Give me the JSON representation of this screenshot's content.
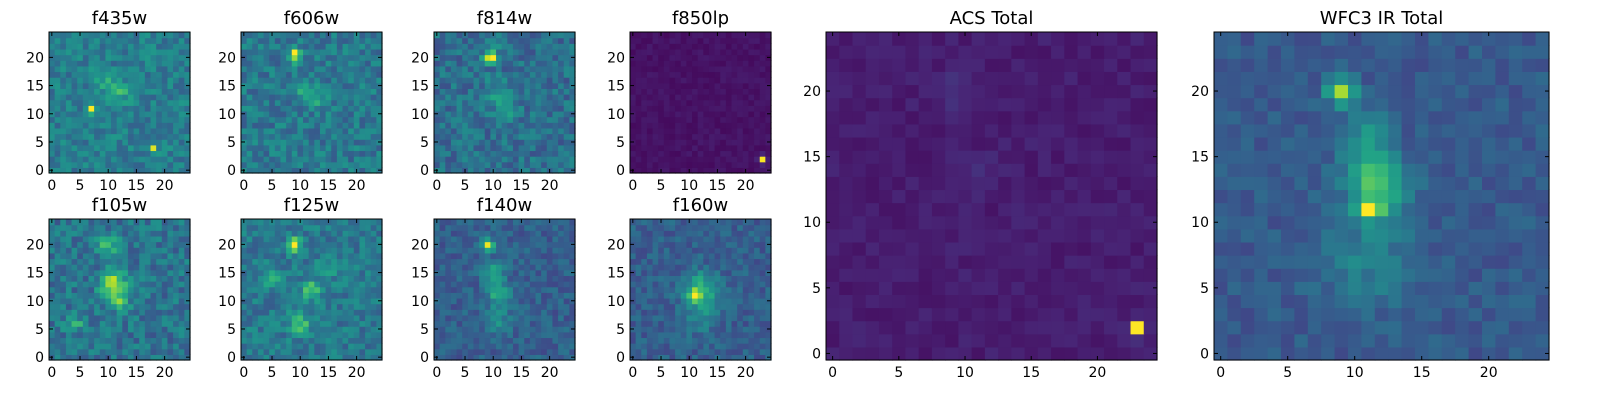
{
  "figure": {
    "colormap": "viridis",
    "grid": false
  },
  "chart_data": [
    {
      "type": "heatmap",
      "key": "f435w",
      "title": "f435w",
      "xlim": [
        0,
        24
      ],
      "ylim": [
        0,
        24
      ],
      "xticks": [
        "0",
        "5",
        "10",
        "15",
        "20"
      ],
      "yticks": [
        "0",
        "5",
        "10",
        "15",
        "20"
      ],
      "background": 0.42,
      "noise": 0.22,
      "peaks": [
        [
          7,
          11,
          0.55,
          0.6
        ],
        [
          18,
          4,
          0.58,
          0.5
        ],
        [
          12,
          14,
          0.2,
          1.5
        ],
        [
          9,
          16,
          0.15,
          1.2
        ]
      ]
    },
    {
      "type": "heatmap",
      "key": "f606w",
      "title": "f606w",
      "xlim": [
        0,
        24
      ],
      "ylim": [
        0,
        24
      ],
      "xticks": [
        "0",
        "5",
        "10",
        "15",
        "20"
      ],
      "yticks": [
        "0",
        "5",
        "10",
        "15",
        "20"
      ],
      "background": 0.4,
      "noise": 0.24,
      "peaks": [
        [
          9,
          21,
          0.55,
          0.6
        ],
        [
          9,
          20,
          0.4,
          0.6
        ],
        [
          11,
          14,
          0.2,
          1.3
        ],
        [
          13,
          13,
          0.15,
          1.5
        ]
      ]
    },
    {
      "type": "heatmap",
      "key": "f814w",
      "title": "f814w",
      "xlim": [
        0,
        24
      ],
      "ylim": [
        0,
        24
      ],
      "xticks": [
        "0",
        "5",
        "10",
        "15",
        "20"
      ],
      "yticks": [
        "0",
        "5",
        "10",
        "15",
        "20"
      ],
      "background": 0.36,
      "noise": 0.24,
      "peaks": [
        [
          10,
          20,
          0.6,
          0.6
        ],
        [
          9,
          20,
          0.45,
          0.6
        ],
        [
          10,
          22,
          0.2,
          0.8
        ],
        [
          11,
          14,
          0.2,
          1.5
        ],
        [
          12,
          11,
          0.15,
          1.5
        ]
      ]
    },
    {
      "type": "heatmap",
      "key": "f850lp",
      "title": "f850lp",
      "xlim": [
        0,
        24
      ],
      "ylim": [
        0,
        24
      ],
      "xticks": [
        "0",
        "5",
        "10",
        "15",
        "20"
      ],
      "yticks": [
        "0",
        "5",
        "10",
        "15",
        "20"
      ],
      "background": 0.05,
      "noise": 0.05,
      "peaks": [
        [
          23,
          2,
          0.95,
          0.4
        ]
      ]
    },
    {
      "type": "heatmap",
      "key": "f105w",
      "title": "f105w",
      "xlim": [
        0,
        24
      ],
      "ylim": [
        0,
        24
      ],
      "xticks": [
        "0",
        "5",
        "10",
        "15",
        "20"
      ],
      "yticks": [
        "0",
        "5",
        "10",
        "15",
        "20"
      ],
      "background": 0.38,
      "noise": 0.25,
      "peaks": [
        [
          10,
          20,
          0.35,
          1.2
        ],
        [
          11,
          14,
          0.42,
          1.2
        ],
        [
          12,
          10,
          0.38,
          1.2
        ],
        [
          10,
          12,
          0.3,
          1.2
        ],
        [
          4,
          6,
          0.3,
          1.0
        ],
        [
          14,
          13,
          0.2,
          1.0
        ]
      ]
    },
    {
      "type": "heatmap",
      "key": "f125w",
      "title": "f125w",
      "xlim": [
        0,
        24
      ],
      "ylim": [
        0,
        24
      ],
      "xticks": [
        "0",
        "5",
        "10",
        "15",
        "20"
      ],
      "yticks": [
        "0",
        "5",
        "10",
        "15",
        "20"
      ],
      "background": 0.4,
      "noise": 0.22,
      "peaks": [
        [
          9,
          20,
          0.5,
          0.9
        ],
        [
          12,
          12,
          0.3,
          1.3
        ],
        [
          10,
          6,
          0.28,
          1.4
        ],
        [
          5,
          14,
          0.2,
          1.2
        ],
        [
          15,
          16,
          0.15,
          1.2
        ]
      ]
    },
    {
      "type": "heatmap",
      "key": "f140w",
      "title": "f140w",
      "xlim": [
        0,
        24
      ],
      "ylim": [
        0,
        24
      ],
      "xticks": [
        "0",
        "5",
        "10",
        "15",
        "20"
      ],
      "yticks": [
        "0",
        "5",
        "10",
        "15",
        "20"
      ],
      "background": 0.3,
      "noise": 0.18,
      "peaks": [
        [
          9,
          20,
          0.6,
          0.8
        ],
        [
          10,
          15,
          0.3,
          1.4
        ],
        [
          11,
          11,
          0.3,
          1.5
        ],
        [
          11,
          6,
          0.2,
          1.6
        ]
      ]
    },
    {
      "type": "heatmap",
      "key": "f160w",
      "title": "f160w",
      "xlim": [
        0,
        24
      ],
      "ylim": [
        0,
        24
      ],
      "xticks": [
        "0",
        "5",
        "10",
        "15",
        "20"
      ],
      "yticks": [
        "0",
        "5",
        "10",
        "15",
        "20"
      ],
      "background": 0.3,
      "noise": 0.18,
      "peaks": [
        [
          11,
          11,
          0.65,
          0.7
        ],
        [
          12,
          12,
          0.35,
          2.2
        ],
        [
          12,
          7,
          0.15,
          2.0
        ]
      ]
    },
    {
      "type": "heatmap",
      "key": "acs_total",
      "title": "ACS Total",
      "xlim": [
        0,
        24
      ],
      "ylim": [
        0,
        24
      ],
      "xticks": [
        "0",
        "5",
        "10",
        "15",
        "20"
      ],
      "yticks": [
        "0",
        "5",
        "10",
        "15",
        "20"
      ],
      "background": 0.08,
      "noise": 0.06,
      "peaks": [
        [
          23,
          2,
          0.92,
          0.4
        ],
        [
          9,
          20,
          0.08,
          1.0
        ],
        [
          11,
          14,
          0.05,
          1.0
        ]
      ]
    },
    {
      "type": "heatmap",
      "key": "wfc3_ir_total",
      "title": "WFC3 IR Total",
      "xlim": [
        0,
        24
      ],
      "ylim": [
        0,
        24
      ],
      "xticks": [
        "0",
        "5",
        "10",
        "15",
        "20"
      ],
      "yticks": [
        "0",
        "5",
        "10",
        "15",
        "20"
      ],
      "background": 0.28,
      "noise": 0.13,
      "peaks": [
        [
          11,
          11,
          0.55,
          0.6
        ],
        [
          9,
          20,
          0.55,
          0.7
        ],
        [
          11,
          14,
          0.35,
          1.3
        ],
        [
          12,
          12,
          0.25,
          1.6
        ],
        [
          11,
          7,
          0.15,
          2.5
        ],
        [
          11,
          17,
          0.2,
          1.3
        ]
      ]
    }
  ]
}
